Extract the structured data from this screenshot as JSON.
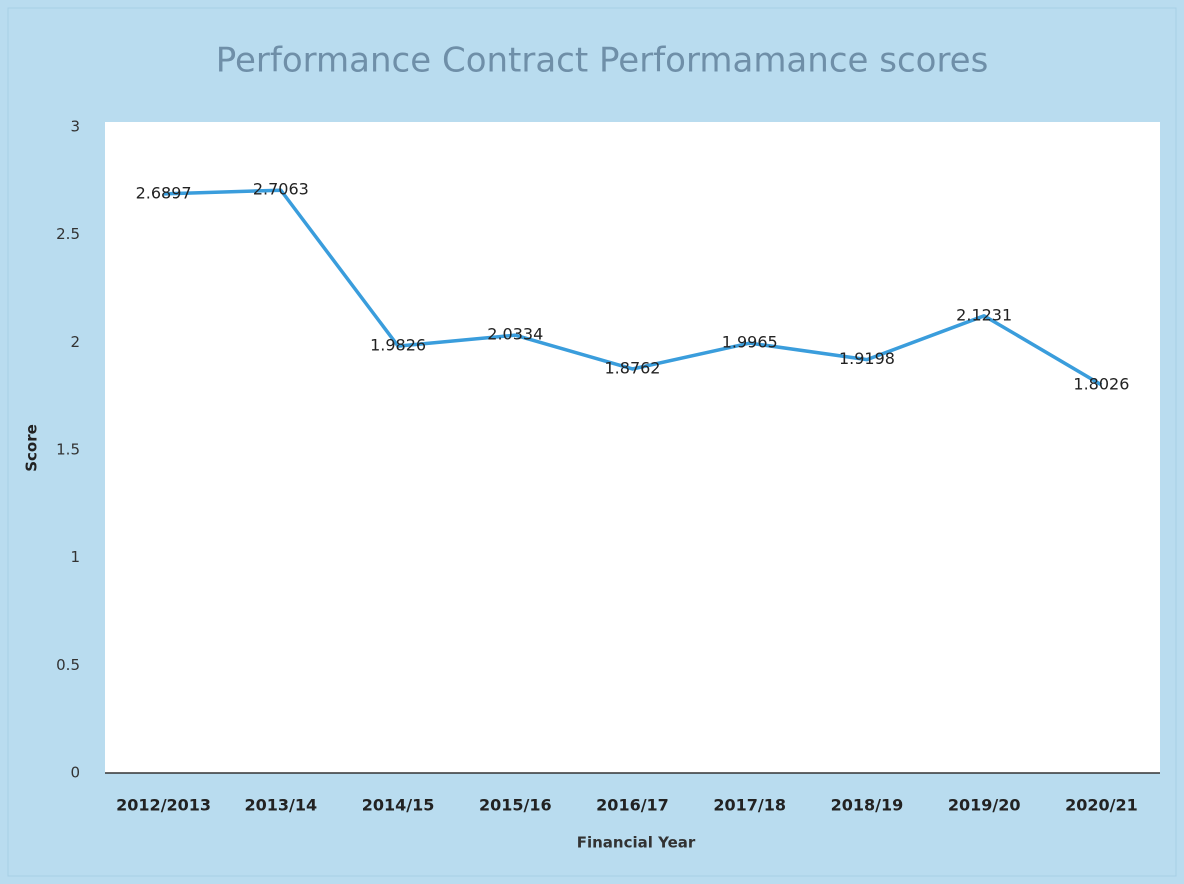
{
  "chart_data": {
    "type": "line",
    "title": "Performance Contract Performamance scores",
    "x_label": "Financial Year",
    "y_label": "Score",
    "categories": [
      "2012/2013",
      "2013/14",
      "2014/15",
      "2015/16",
      "2016/17",
      "2017/18",
      "2018/19",
      "2019/20",
      "2020/21"
    ],
    "series": [
      {
        "name": "Score",
        "color": "#3a9ddc",
        "values": [
          2.6897,
          2.7063,
          1.9826,
          2.0334,
          1.8762,
          1.9965,
          1.9198,
          2.1231,
          1.8026
        ]
      }
    ],
    "ylim": [
      0,
      3
    ],
    "yticks": [
      0,
      0.5,
      1,
      1.5,
      2,
      2.5,
      3
    ],
    "grid": false
  }
}
